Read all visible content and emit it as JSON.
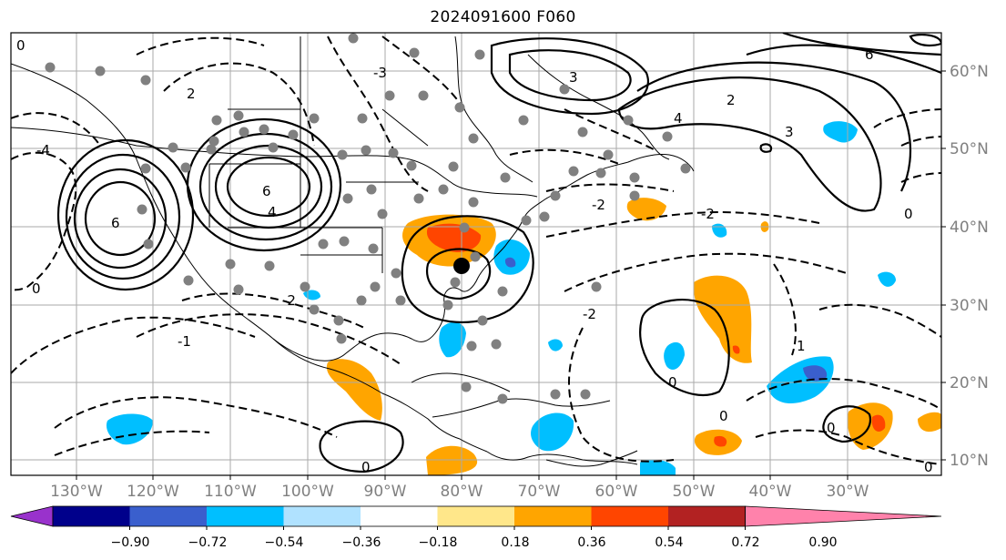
{
  "title": "2024091600 F060",
  "lon_labels": [
    "130°W",
    "120°W",
    "110°W",
    "100°W",
    "90°W",
    "80°W",
    "70°W",
    "60°W",
    "50°W",
    "40°W",
    "30°W"
  ],
  "lat_labels": [
    "60°N",
    "50°N",
    "40°N",
    "30°N",
    "20°N",
    "10°N"
  ],
  "colorbar": {
    "tick_labels": [
      "−0.90",
      "−0.72",
      "−0.54",
      "−0.36",
      "−0.18",
      "0.18",
      "0.36",
      "0.54",
      "0.72",
      "0.90"
    ],
    "colors": [
      "#9932cc",
      "#00008b",
      "#3a5fcd",
      "#00bfff",
      "#b0e2ff",
      "#ffffff",
      "#ffe78a",
      "#ffa500",
      "#ff4500",
      "#b22222",
      "#ff82ab"
    ]
  },
  "contour_labels": [
    "0",
    "2",
    "4",
    "6",
    "-2",
    "-4",
    "1",
    "3",
    "-1",
    "-3"
  ],
  "storm_marker": "black-dot"
}
